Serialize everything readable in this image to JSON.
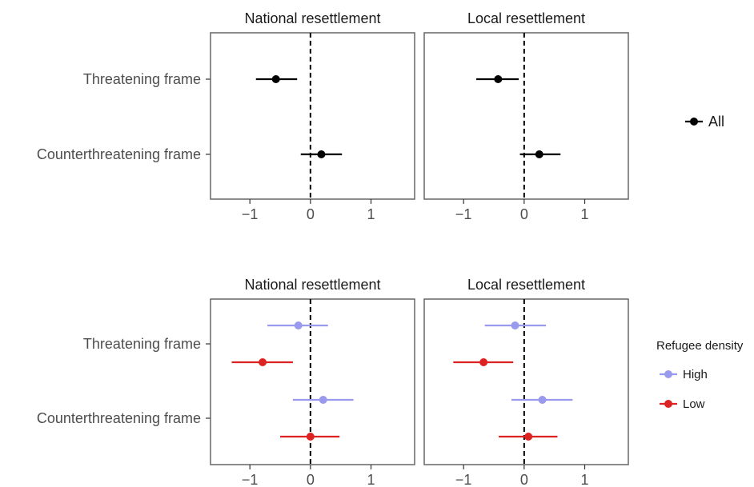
{
  "chart_data": [
    {
      "type": "dot-whisker",
      "categories": [
        "Threatening frame",
        "Counterthreatening frame"
      ],
      "xlim": [
        -1.65,
        1.72
      ],
      "x_ticks": [
        -1,
        0,
        1
      ],
      "x_tick_labels": [
        "−1",
        "0",
        "1"
      ],
      "reference_line": 0,
      "legend": {
        "title": "",
        "position": "right",
        "entries": [
          {
            "label": "All",
            "color": "#000000"
          }
        ]
      },
      "panels": [
        {
          "title": "National resettlement",
          "series": [
            {
              "name": "All",
              "color": "#000000",
              "offset": 0,
              "points": [
                {
                  "category": "Threatening frame",
                  "estimate": -0.57,
                  "lower": -0.9,
                  "upper": -0.22
                },
                {
                  "category": "Counterthreatening frame",
                  "estimate": 0.18,
                  "lower": -0.16,
                  "upper": 0.52
                }
              ]
            }
          ]
        },
        {
          "title": "Local resettlement",
          "series": [
            {
              "name": "All",
              "color": "#000000",
              "offset": 0,
              "points": [
                {
                  "category": "Threatening frame",
                  "estimate": -0.43,
                  "lower": -0.79,
                  "upper": -0.09
                },
                {
                  "category": "Counterthreatening frame",
                  "estimate": 0.25,
                  "lower": -0.07,
                  "upper": 0.6
                }
              ]
            }
          ]
        }
      ]
    },
    {
      "type": "dot-whisker",
      "categories": [
        "Threatening frame",
        "Counterthreatening frame"
      ],
      "xlim": [
        -1.65,
        1.72
      ],
      "x_ticks": [
        -1,
        0,
        1
      ],
      "x_tick_labels": [
        "−1",
        "0",
        "1"
      ],
      "reference_line": 0,
      "legend": {
        "title": "Refugee density",
        "position": "right",
        "entries": [
          {
            "label": "High",
            "color": "#9999ee"
          },
          {
            "label": "Low",
            "color": "#dd2222"
          }
        ]
      },
      "panels": [
        {
          "title": "National resettlement",
          "series": [
            {
              "name": "High",
              "color": "#9999ee",
              "offset": -1,
              "points": [
                {
                  "category": "Threatening frame",
                  "estimate": -0.2,
                  "lower": -0.71,
                  "upper": 0.29
                },
                {
                  "category": "Counterthreatening frame",
                  "estimate": 0.21,
                  "lower": -0.29,
                  "upper": 0.71
                }
              ]
            },
            {
              "name": "Low",
              "color": "#dd2222",
              "offset": 1,
              "points": [
                {
                  "category": "Threatening frame",
                  "estimate": -0.79,
                  "lower": -1.3,
                  "upper": -0.29
                },
                {
                  "category": "Counterthreatening frame",
                  "estimate": 0.0,
                  "lower": -0.5,
                  "upper": 0.48
                }
              ]
            }
          ]
        },
        {
          "title": "Local resettlement",
          "series": [
            {
              "name": "High",
              "color": "#9999ee",
              "offset": -1,
              "points": [
                {
                  "category": "Threatening frame",
                  "estimate": -0.15,
                  "lower": -0.65,
                  "upper": 0.36
                },
                {
                  "category": "Counterthreatening frame",
                  "estimate": 0.3,
                  "lower": -0.21,
                  "upper": 0.8
                }
              ]
            },
            {
              "name": "Low",
              "color": "#dd2222",
              "offset": 1,
              "points": [
                {
                  "category": "Threatening frame",
                  "estimate": -0.67,
                  "lower": -1.17,
                  "upper": -0.18
                },
                {
                  "category": "Counterthreatening frame",
                  "estimate": 0.07,
                  "lower": -0.42,
                  "upper": 0.55
                }
              ]
            }
          ]
        }
      ]
    }
  ]
}
